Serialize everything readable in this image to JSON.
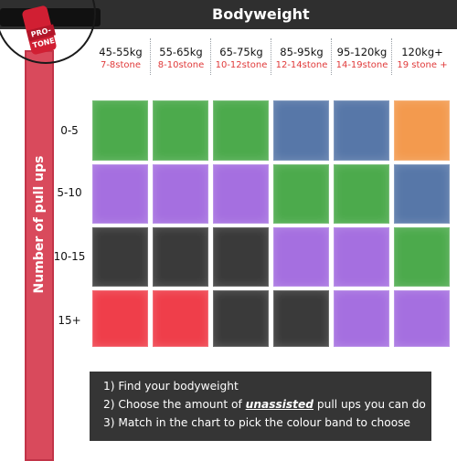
{
  "header": {
    "title": "Bodyweight"
  },
  "band": {
    "brand": "PRO-TONE",
    "color": "#d11f33"
  },
  "axis": {
    "pullups_label": "Number of pull ups"
  },
  "columns": [
    {
      "kg": "45-55kg",
      "stone": "7-8stone"
    },
    {
      "kg": "55-65kg",
      "stone": "8-10stone"
    },
    {
      "kg": "65-75kg",
      "stone": "10-12stone"
    },
    {
      "kg": "85-95kg",
      "stone": "12-14stone"
    },
    {
      "kg": "95-120kg",
      "stone": "14-19stone"
    },
    {
      "kg": "120kg+",
      "stone": "19 stone +"
    }
  ],
  "rows": [
    {
      "label": "0-5",
      "bands": [
        "green",
        "green",
        "green",
        "blue",
        "blue",
        "orange"
      ]
    },
    {
      "label": "5-10",
      "bands": [
        "purple",
        "purple",
        "purple",
        "green",
        "green",
        "blue"
      ]
    },
    {
      "label": "10-15",
      "bands": [
        "black",
        "black",
        "black",
        "purple",
        "purple",
        "green"
      ]
    },
    {
      "label": "15+",
      "bands": [
        "red",
        "red",
        "black",
        "black",
        "purple",
        "purple"
      ]
    }
  ],
  "band_colors": {
    "green": "#4caa4c",
    "blue": "#5777a8",
    "orange": "#f39a4e",
    "purple": "#a56fe0",
    "black": "#3a3a3a",
    "red": "#ef3e4a"
  },
  "instructions": {
    "line1": "1) Find your bodyweight",
    "line2_pre": "2) Choose the amount of ",
    "line2_emph": "unassisted",
    "line2_post": " pull ups you can do",
    "line3": "3) Match in the chart to pick the colour band to choose"
  }
}
